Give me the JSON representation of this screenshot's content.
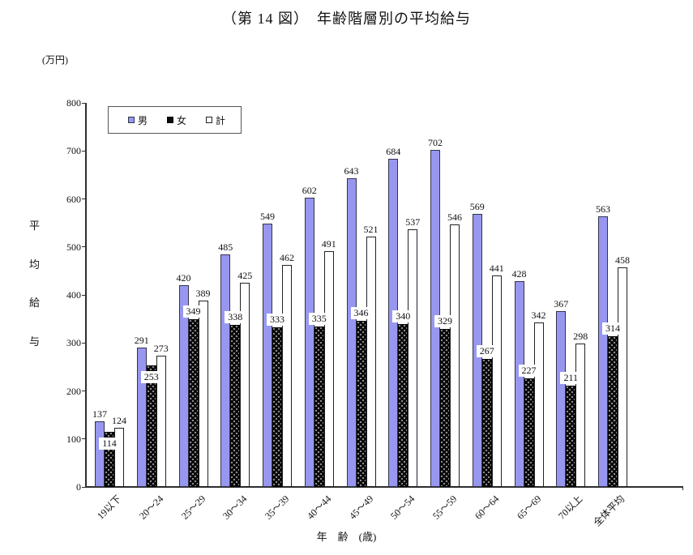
{
  "title": "（第 14 図）　年齢階層別の平均給与",
  "unit_label": "(万円)",
  "legend": [
    {
      "key": "male",
      "label": "男"
    },
    {
      "key": "female",
      "label": "女"
    },
    {
      "key": "total",
      "label": "計"
    }
  ],
  "colors": {
    "male_fill": "#9797F0",
    "male_border": "#33334d",
    "female_fill": "#0a0a0a",
    "total_fill": "#ffffff",
    "axis": "#2e2e2e"
  },
  "chart_data": {
    "type": "bar",
    "title": "（第 14 図）　年齢階層別の平均給与",
    "categories": [
      "19以下",
      "20〜24",
      "25〜29",
      "30〜34",
      "35〜39",
      "40〜44",
      "45〜49",
      "50〜54",
      "55〜59",
      "60〜64",
      "65〜69",
      "70以上",
      "全体平均"
    ],
    "series": [
      {
        "name": "男",
        "key": "male",
        "values": [
          137,
          291,
          420,
          485,
          549,
          602,
          643,
          684,
          702,
          569,
          428,
          367,
          563
        ]
      },
      {
        "name": "女",
        "key": "female",
        "values": [
          114,
          253,
          349,
          338,
          333,
          335,
          346,
          340,
          329,
          267,
          227,
          211,
          314
        ]
      },
      {
        "name": "計",
        "key": "total",
        "values": [
          124,
          273,
          389,
          425,
          462,
          491,
          521,
          537,
          546,
          441,
          342,
          298,
          458
        ]
      }
    ],
    "ylabel": "平均給与",
    "xlabel": "年　齢　(歳)",
    "ylim": [
      0,
      800
    ],
    "ytick_step": 100,
    "grid": false,
    "legend_position": "top-left"
  }
}
